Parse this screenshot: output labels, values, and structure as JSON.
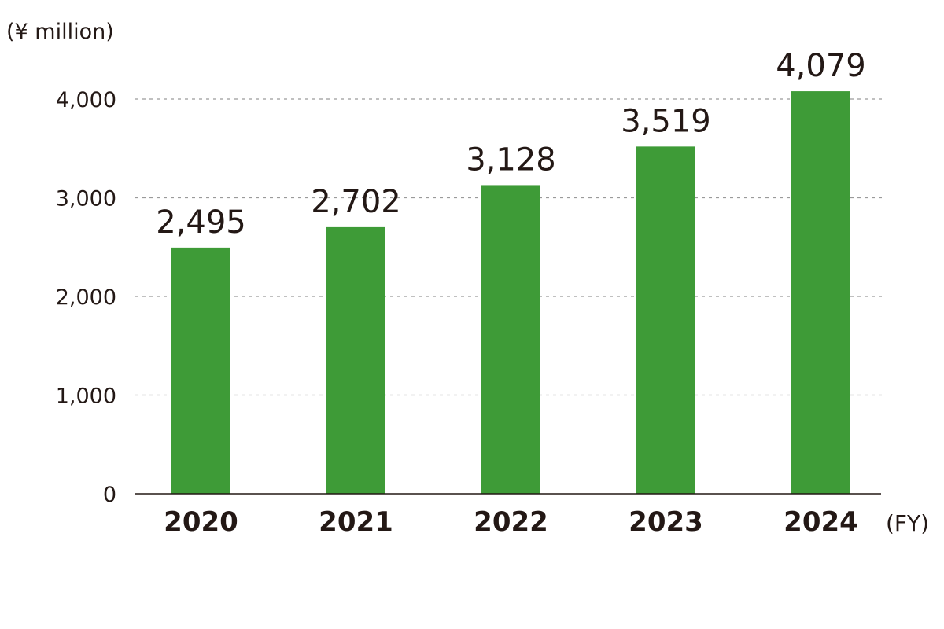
{
  "chart_data": {
    "type": "bar",
    "title": "",
    "unit_label": "(¥ million)",
    "xlabel": "(FY)",
    "ylabel": "",
    "categories": [
      "2020",
      "2021",
      "2022",
      "2023",
      "2024"
    ],
    "values": [
      2495,
      2702,
      3128,
      3519,
      4079
    ],
    "value_labels": [
      "2,495",
      "2,702",
      "3,128",
      "3,519",
      "4,079"
    ],
    "ylim": [
      0,
      4000
    ],
    "yticks": [
      0,
      1000,
      2000,
      3000,
      4000
    ],
    "ytick_labels": [
      "0",
      "1,000",
      "2,000",
      "3,000",
      "4,000"
    ],
    "grid": true,
    "bar_color": "#3e9b37"
  }
}
